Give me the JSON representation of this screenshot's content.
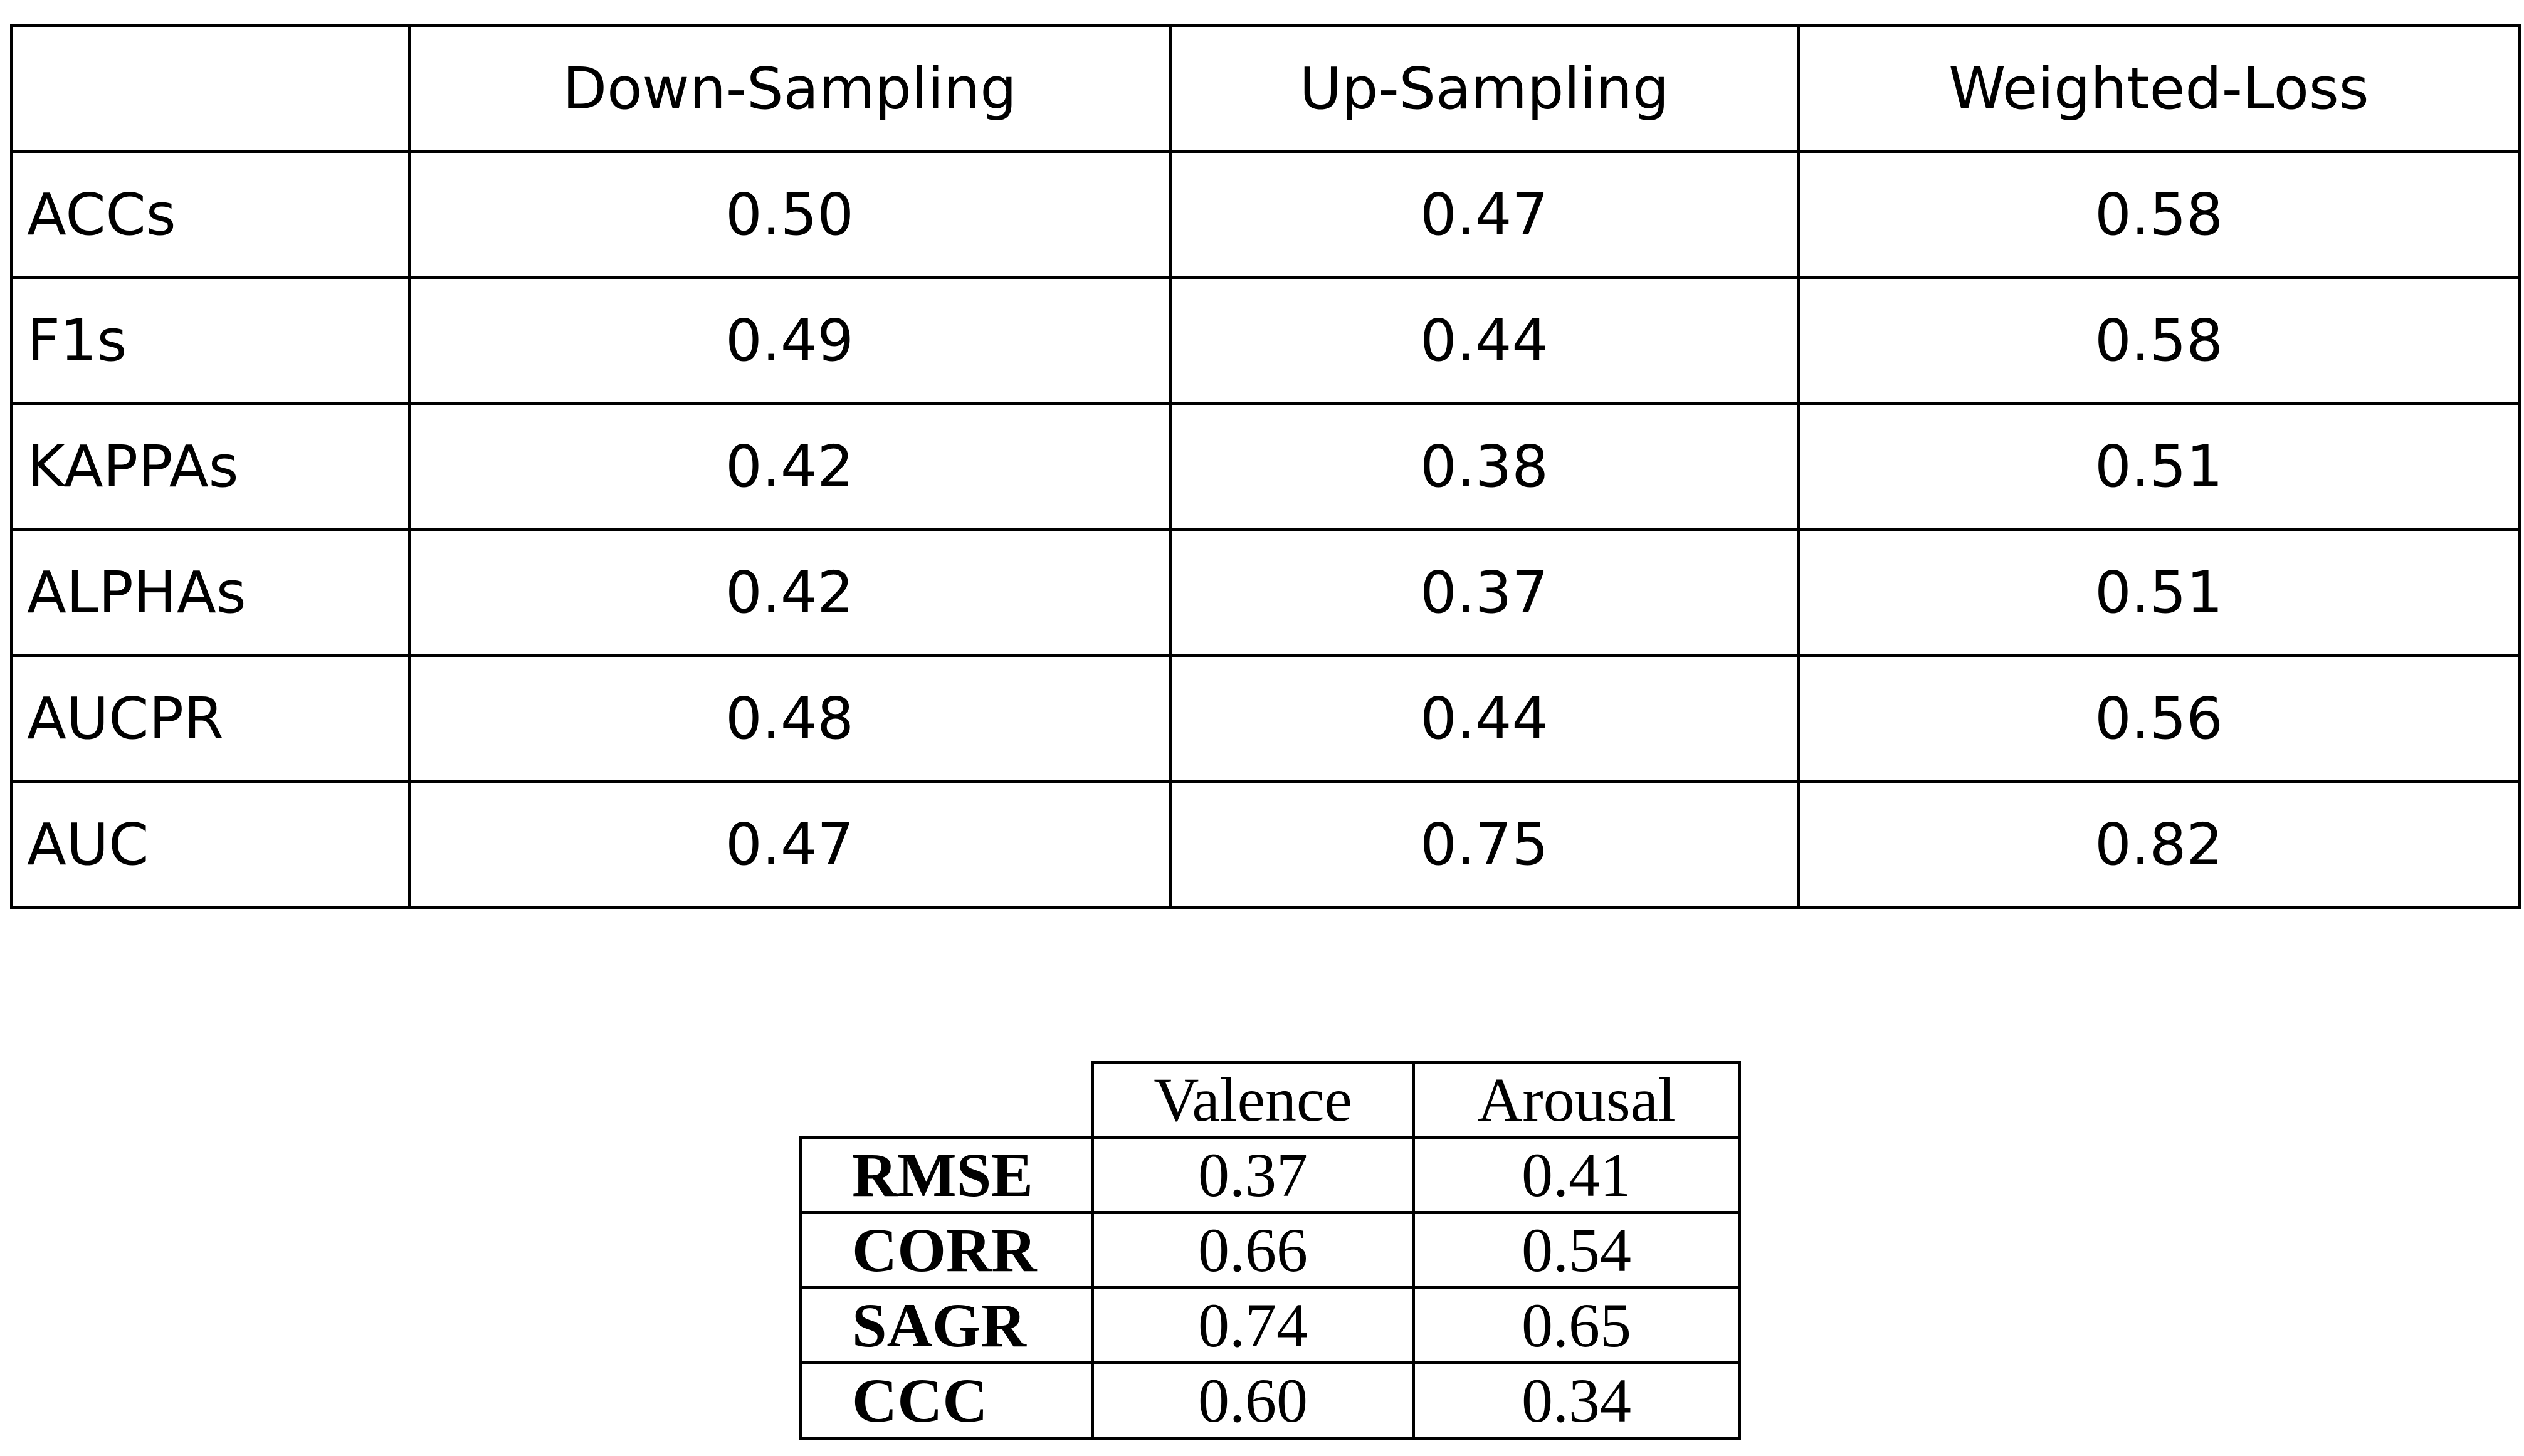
{
  "sampling_table": {
    "headers": [
      "",
      "Down-Sampling",
      "Up-Sampling",
      "Weighted-Loss"
    ],
    "rows": [
      {
        "label": "ACCs",
        "values": [
          "0.50",
          "0.47",
          "0.58"
        ]
      },
      {
        "label": "F1s",
        "values": [
          "0.49",
          "0.44",
          "0.58"
        ]
      },
      {
        "label": "KAPPAs",
        "values": [
          "0.42",
          "0.38",
          "0.51"
        ]
      },
      {
        "label": "ALPHAs",
        "values": [
          "0.42",
          "0.37",
          "0.51"
        ]
      },
      {
        "label": "AUCPR",
        "values": [
          "0.48",
          "0.44",
          "0.56"
        ]
      },
      {
        "label": "AUC",
        "values": [
          "0.47",
          "0.75",
          "0.82"
        ]
      }
    ]
  },
  "regression_table": {
    "headers": [
      "",
      "Valence",
      "Arousal"
    ],
    "rows": [
      {
        "label": "RMSE",
        "values": [
          "0.37",
          "0.41"
        ]
      },
      {
        "label": "CORR",
        "values": [
          "0.66",
          "0.54"
        ]
      },
      {
        "label": "SAGR",
        "values": [
          "0.74",
          "0.65"
        ]
      },
      {
        "label": "CCC",
        "values": [
          "0.60",
          "0.34"
        ]
      }
    ]
  }
}
